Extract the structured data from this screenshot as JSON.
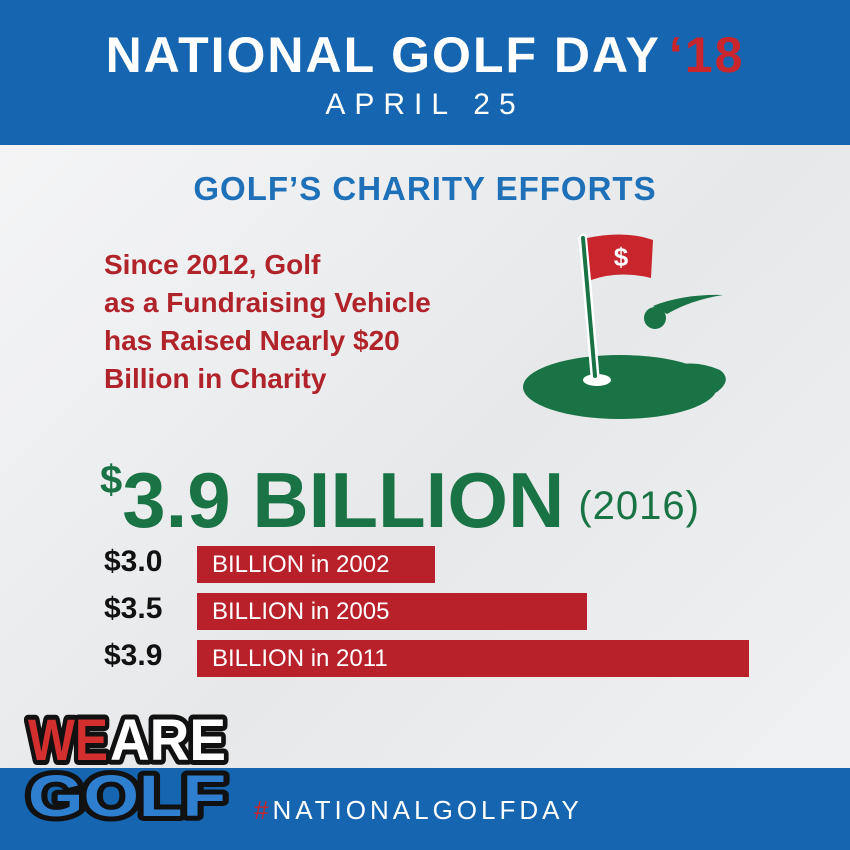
{
  "header": {
    "title": "NATIONAL GOLF DAY",
    "year": "‘18",
    "date": "APRIL 25"
  },
  "section_title": "GOLF’S CHARITY EFFORTS",
  "blurb_lines": [
    "Since 2012, Golf",
    "as a Fundraising Vehicle",
    "has Raised Nearly $20",
    "Billion in Charity"
  ],
  "flag_symbol": "$",
  "highlight": {
    "currency": "$",
    "amount": "3.9 BILLION",
    "year": "(2016)"
  },
  "bars": [
    {
      "value_label": "$3.0",
      "label": "BILLION in 2002",
      "value": 3.0
    },
    {
      "value_label": "$3.5",
      "label": "BILLION in 2005",
      "value": 3.5
    },
    {
      "value_label": "$3.9",
      "label": "BILLION in 2011",
      "value": 3.9
    }
  ],
  "footer": {
    "hash": "#",
    "hashtag": "NATIONALGOLFDAY"
  },
  "logo": {
    "line1_a": "WE",
    "line1_b": "ARE",
    "line2": "GOLF"
  },
  "colors": {
    "blue": "#1565b0",
    "red": "#b8202a",
    "green": "#197345"
  },
  "icons": [
    "golf-flag-icon",
    "golf-ball-icon",
    "putting-green-icon"
  ]
}
